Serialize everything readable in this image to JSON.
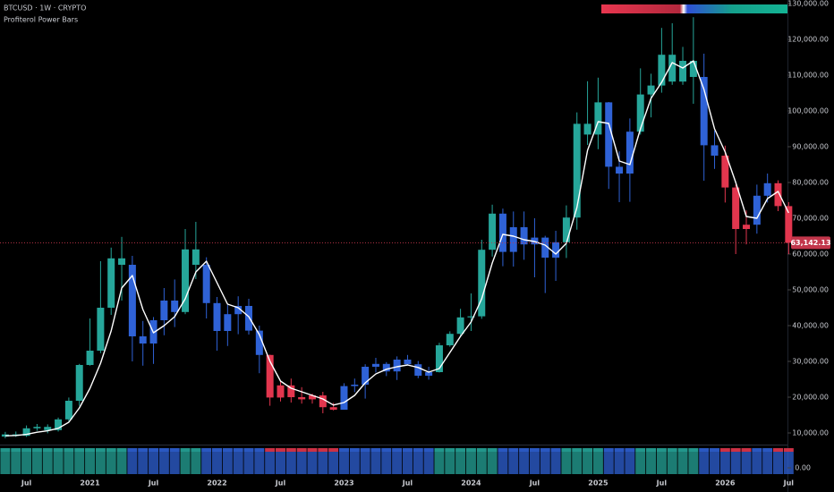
{
  "chart_data": {
    "type": "candlestick",
    "title": "BTCUSD · 1W · CRYPTO",
    "subtitle": "Profiterol Power Bars",
    "categories": [
      null,
      null,
      "Jul",
      null,
      null,
      null,
      null,
      null,
      "2021",
      null,
      null,
      null,
      null,
      null,
      "Jul",
      null,
      null,
      null,
      null,
      null,
      "2022",
      null,
      null,
      null,
      null,
      null,
      "Jul",
      null,
      null,
      null,
      null,
      null,
      "2023",
      null,
      null,
      null,
      null,
      null,
      "Jul",
      null,
      null,
      null,
      null,
      null,
      "2024",
      null,
      null,
      null,
      null,
      null,
      "Jul",
      null,
      null,
      null,
      null,
      null,
      "2025",
      null,
      null,
      null,
      null,
      null,
      "Jul",
      null,
      null,
      null,
      null,
      null,
      "2026",
      null,
      null,
      null,
      null,
      null,
      "Jul"
    ],
    "open": [
      9000,
      9600,
      9200,
      11300,
      11700,
      10800,
      13800,
      19000,
      29000,
      33000,
      45000,
      58800,
      57000,
      37000,
      35000,
      41500,
      47000,
      43800,
      61300,
      57000,
      46300,
      38500,
      43200,
      45500,
      38600,
      31800,
      19900,
      23300,
      20000,
      19400,
      20500,
      17200,
      16500,
      23100,
      23500,
      28500,
      29300,
      27200,
      30500,
      29200,
      26000,
      27000,
      34500,
      37700,
      42300,
      42600,
      61200,
      71300,
      60600,
      67500,
      62700,
      64600,
      59000,
      63300,
      70200,
      96400,
      93400,
      102400,
      84400,
      82500,
      94200,
      104600,
      107100,
      115700,
      108200,
      114000,
      109500,
      90400,
      87500,
      78600,
      67000,
      68200,
      76300,
      79800,
      73400
    ],
    "high": [
      10300,
      10400,
      12100,
      12500,
      12400,
      14300,
      19900,
      29300,
      42000,
      58000,
      61800,
      64800,
      59500,
      41300,
      42400,
      50500,
      52900,
      67000,
      69000,
      59100,
      48000,
      45800,
      48200,
      47500,
      40000,
      31900,
      24600,
      25200,
      22800,
      21000,
      21500,
      18400,
      23900,
      25200,
      29200,
      31000,
      29800,
      31400,
      31800,
      30100,
      28500,
      35200,
      38400,
      44700,
      49000,
      64000,
      73800,
      72700,
      71900,
      71900,
      70000,
      65100,
      66500,
      73600,
      99600,
      108300,
      109300,
      102500,
      88700,
      97900,
      111900,
      110400,
      123200,
      124500,
      117900,
      126200,
      116000,
      94500,
      90300,
      79400,
      72200,
      79400,
      82500,
      80600,
      74500
    ],
    "low": [
      8500,
      8900,
      8900,
      10600,
      9900,
      10400,
      13200,
      17600,
      28800,
      32300,
      43000,
      47000,
      30000,
      28800,
      29300,
      37300,
      39600,
      43200,
      53000,
      42000,
      33000,
      34300,
      37600,
      37500,
      26700,
      17600,
      18800,
      18500,
      18200,
      18200,
      15500,
      16300,
      16500,
      21400,
      19600,
      26900,
      25900,
      24800,
      28900,
      25300,
      24900,
      26900,
      34100,
      36900,
      38500,
      41900,
      59300,
      56600,
      56500,
      58400,
      53500,
      49100,
      52500,
      58900,
      66800,
      90500,
      89300,
      78200,
      74500,
      74600,
      93400,
      98200,
      105100,
      107300,
      107300,
      102000,
      80500,
      83800,
      74400,
      60000,
      62700,
      65700,
      74400,
      72000,
      60000
    ],
    "close": [
      9600,
      9200,
      11300,
      11700,
      10800,
      13800,
      19000,
      29000,
      33000,
      45000,
      58800,
      57000,
      37000,
      35000,
      41500,
      47000,
      43800,
      61300,
      57000,
      46300,
      38500,
      43200,
      45500,
      38600,
      31800,
      19900,
      23300,
      20000,
      19400,
      20500,
      17200,
      16500,
      23100,
      23500,
      28500,
      29300,
      27200,
      30500,
      29200,
      26000,
      27000,
      34500,
      37700,
      42300,
      42600,
      61200,
      71300,
      60600,
      67500,
      62700,
      64600,
      59000,
      63300,
      70200,
      96400,
      93400,
      102400,
      84400,
      82500,
      94200,
      104600,
      107100,
      115700,
      108200,
      114000,
      109500,
      90400,
      87500,
      78600,
      67000,
      68200,
      76300,
      79800,
      73400,
      63142.13
    ],
    "colors": [
      "#26a69a",
      "#26a69a",
      "#26a69a",
      "#26a69a",
      "#26a69a",
      "#26a69a",
      "#26a69a",
      "#26a69a",
      "#26a69a",
      "#26a69a",
      "#26a69a",
      "#26a69a",
      "#2f62d6",
      "#2f62d6",
      "#2f62d6",
      "#2f62d6",
      "#2f62d6",
      "#26a69a",
      "#26a69a",
      "#2f62d6",
      "#2f62d6",
      "#2f62d6",
      "#2f62d6",
      "#2f62d6",
      "#2f62d6",
      "#e2364e",
      "#e2364e",
      "#e2364e",
      "#e2364e",
      "#e2364e",
      "#e2364e",
      "#e2364e",
      "#2f62d6",
      "#2f62d6",
      "#2f62d6",
      "#2f62d6",
      "#2f62d6",
      "#2f62d6",
      "#2f62d6",
      "#2f62d6",
      "#2f62d6",
      "#26a69a",
      "#26a69a",
      "#26a69a",
      "#26a69a",
      "#26a69a",
      "#26a69a",
      "#2f62d6",
      "#2f62d6",
      "#2f62d6",
      "#2f62d6",
      "#2f62d6",
      "#2f62d6",
      "#26a69a",
      "#26a69a",
      "#26a69a",
      "#26a69a",
      "#2f62d6",
      "#2f62d6",
      "#2f62d6",
      "#26a69a",
      "#26a69a",
      "#26a69a",
      "#26a69a",
      "#26a69a",
      "#26a69a",
      "#2f62d6",
      "#2f62d6",
      "#e2364e",
      "#e2364e",
      "#e2364e",
      "#2f62d6",
      "#2f62d6",
      "#e2364e",
      "#e2364e"
    ],
    "ma": {
      "color": "#ffffff",
      "values": [
        9200,
        9300,
        9600,
        10200,
        10600,
        11300,
        13000,
        17000,
        22500,
        29500,
        38500,
        50500,
        54000,
        44500,
        38000,
        40000,
        42500,
        47500,
        55000,
        58000,
        52000,
        46000,
        45000,
        42500,
        37500,
        30000,
        24500,
        22500,
        21500,
        20500,
        19500,
        17800,
        18500,
        20500,
        24000,
        26500,
        27800,
        28500,
        29000,
        28300,
        27000,
        28000,
        32500,
        37000,
        41000,
        47500,
        57500,
        65500,
        65000,
        64000,
        63500,
        62500,
        60000,
        63000,
        73000,
        89000,
        97000,
        96500,
        86000,
        85000,
        95000,
        103500,
        108000,
        113500,
        112000,
        114000,
        106000,
        95000,
        88500,
        80000,
        70500,
        70000,
        75500,
        77500,
        71500
      ]
    },
    "ylim": [
      7000,
      131000
    ],
    "yticks": [
      {
        "value": 10000,
        "label": "10,000.00"
      },
      {
        "value": 20000,
        "label": "20,000.00"
      },
      {
        "value": 30000,
        "label": "30,000.00"
      },
      {
        "value": 40000,
        "label": "40,000.00"
      },
      {
        "value": 50000,
        "label": "50,000.00"
      },
      {
        "value": 60000,
        "label": "60,000.00"
      },
      {
        "value": 70000,
        "label": "70,000.00"
      },
      {
        "value": 80000,
        "label": "80,000.00"
      },
      {
        "value": 90000,
        "label": "90,000.00"
      },
      {
        "value": 100000,
        "label": "100,000.00"
      },
      {
        "value": 110000,
        "label": "110,000.00"
      },
      {
        "value": 120000,
        "label": "120,000.00"
      },
      {
        "value": 130000,
        "label": "130,000.00"
      }
    ],
    "last_price": {
      "value": 63142.13,
      "label": "63,142.13",
      "color": "#c2364b"
    },
    "indicator_yticks": [
      {
        "value": 0,
        "label": "0.00"
      }
    ]
  }
}
